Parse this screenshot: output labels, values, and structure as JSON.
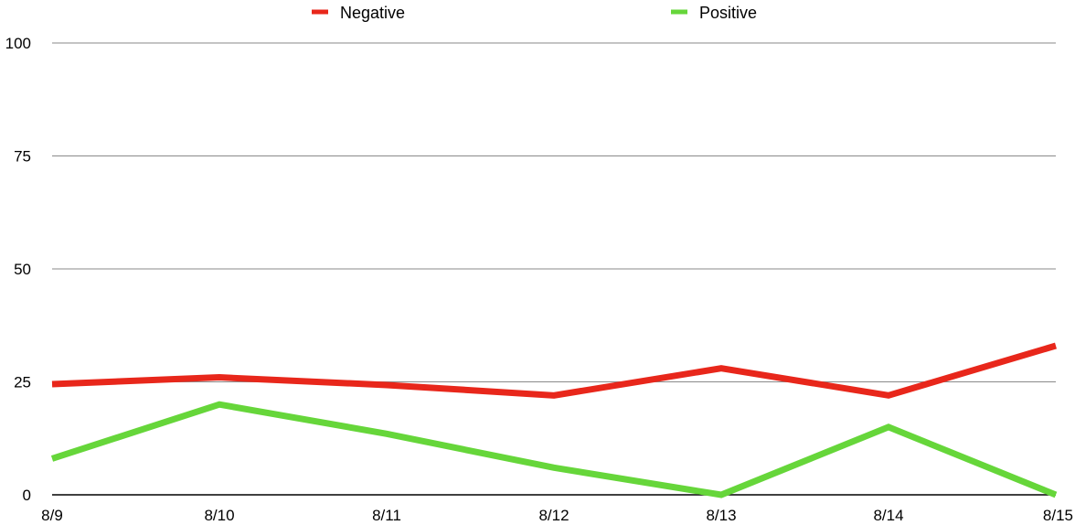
{
  "chart_data": {
    "type": "line",
    "categories": [
      "8/9",
      "8/10",
      "8/11",
      "8/12",
      "8/13",
      "8/14",
      "8/15"
    ],
    "series": [
      {
        "name": "Negative",
        "color": "#e8271b",
        "values": [
          24.5,
          26,
          24.3,
          22,
          28,
          22,
          33
        ]
      },
      {
        "name": "Positive",
        "color": "#66d63a",
        "values": [
          8,
          20,
          13.5,
          6,
          0,
          15,
          0
        ]
      }
    ],
    "yticks": [
      "0",
      "25",
      "50",
      "75",
      "100"
    ],
    "ylim": [
      0,
      100
    ],
    "grid": true,
    "legend": "top-center"
  }
}
